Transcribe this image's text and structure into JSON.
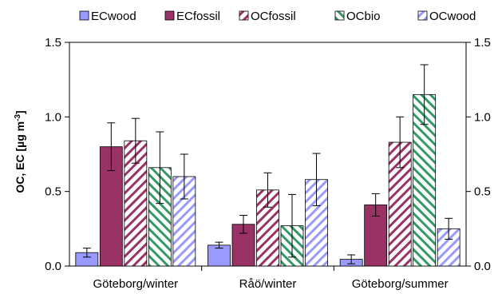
{
  "chart_data": {
    "type": "bar",
    "categories": [
      "Göteborg/winter",
      "Råö/winter",
      "Göteborg/summer"
    ],
    "ylabel": "OC, EC [µg m⁻³]",
    "ylabel_main": "OC, EC [µg m",
    "ylabel_sup": "-3",
    "ylabel_end": "]",
    "ylim": [
      0,
      1.5
    ],
    "yticks": [
      "0.0",
      "0.5",
      "1.0",
      "1.5"
    ],
    "secondary_axis": true,
    "legend_position": "top",
    "series": [
      {
        "name": "ECwood",
        "color": "#9999ff",
        "pattern": "solid",
        "values": [
          0.09,
          0.14,
          0.045
        ],
        "err": [
          0.03,
          0.02,
          0.03
        ]
      },
      {
        "name": "ECfossil",
        "color": "#993366",
        "pattern": "solid",
        "values": [
          0.8,
          0.28,
          0.41
        ],
        "err": [
          0.16,
          0.06,
          0.075
        ]
      },
      {
        "name": "OCfossil",
        "color": "#993366",
        "pattern": "hatch",
        "values": [
          0.84,
          0.51,
          0.83
        ],
        "err": [
          0.15,
          0.115,
          0.17
        ]
      },
      {
        "name": "OCbio",
        "color": "#339966",
        "pattern": "hatch2",
        "values": [
          0.66,
          0.27,
          1.15
        ],
        "err": [
          0.24,
          0.21,
          0.2
        ]
      },
      {
        "name": "OCwood",
        "color": "#9999ff",
        "pattern": "hatch",
        "values": [
          0.6,
          0.58,
          0.25
        ],
        "err": [
          0.15,
          0.175,
          0.07
        ]
      }
    ]
  }
}
